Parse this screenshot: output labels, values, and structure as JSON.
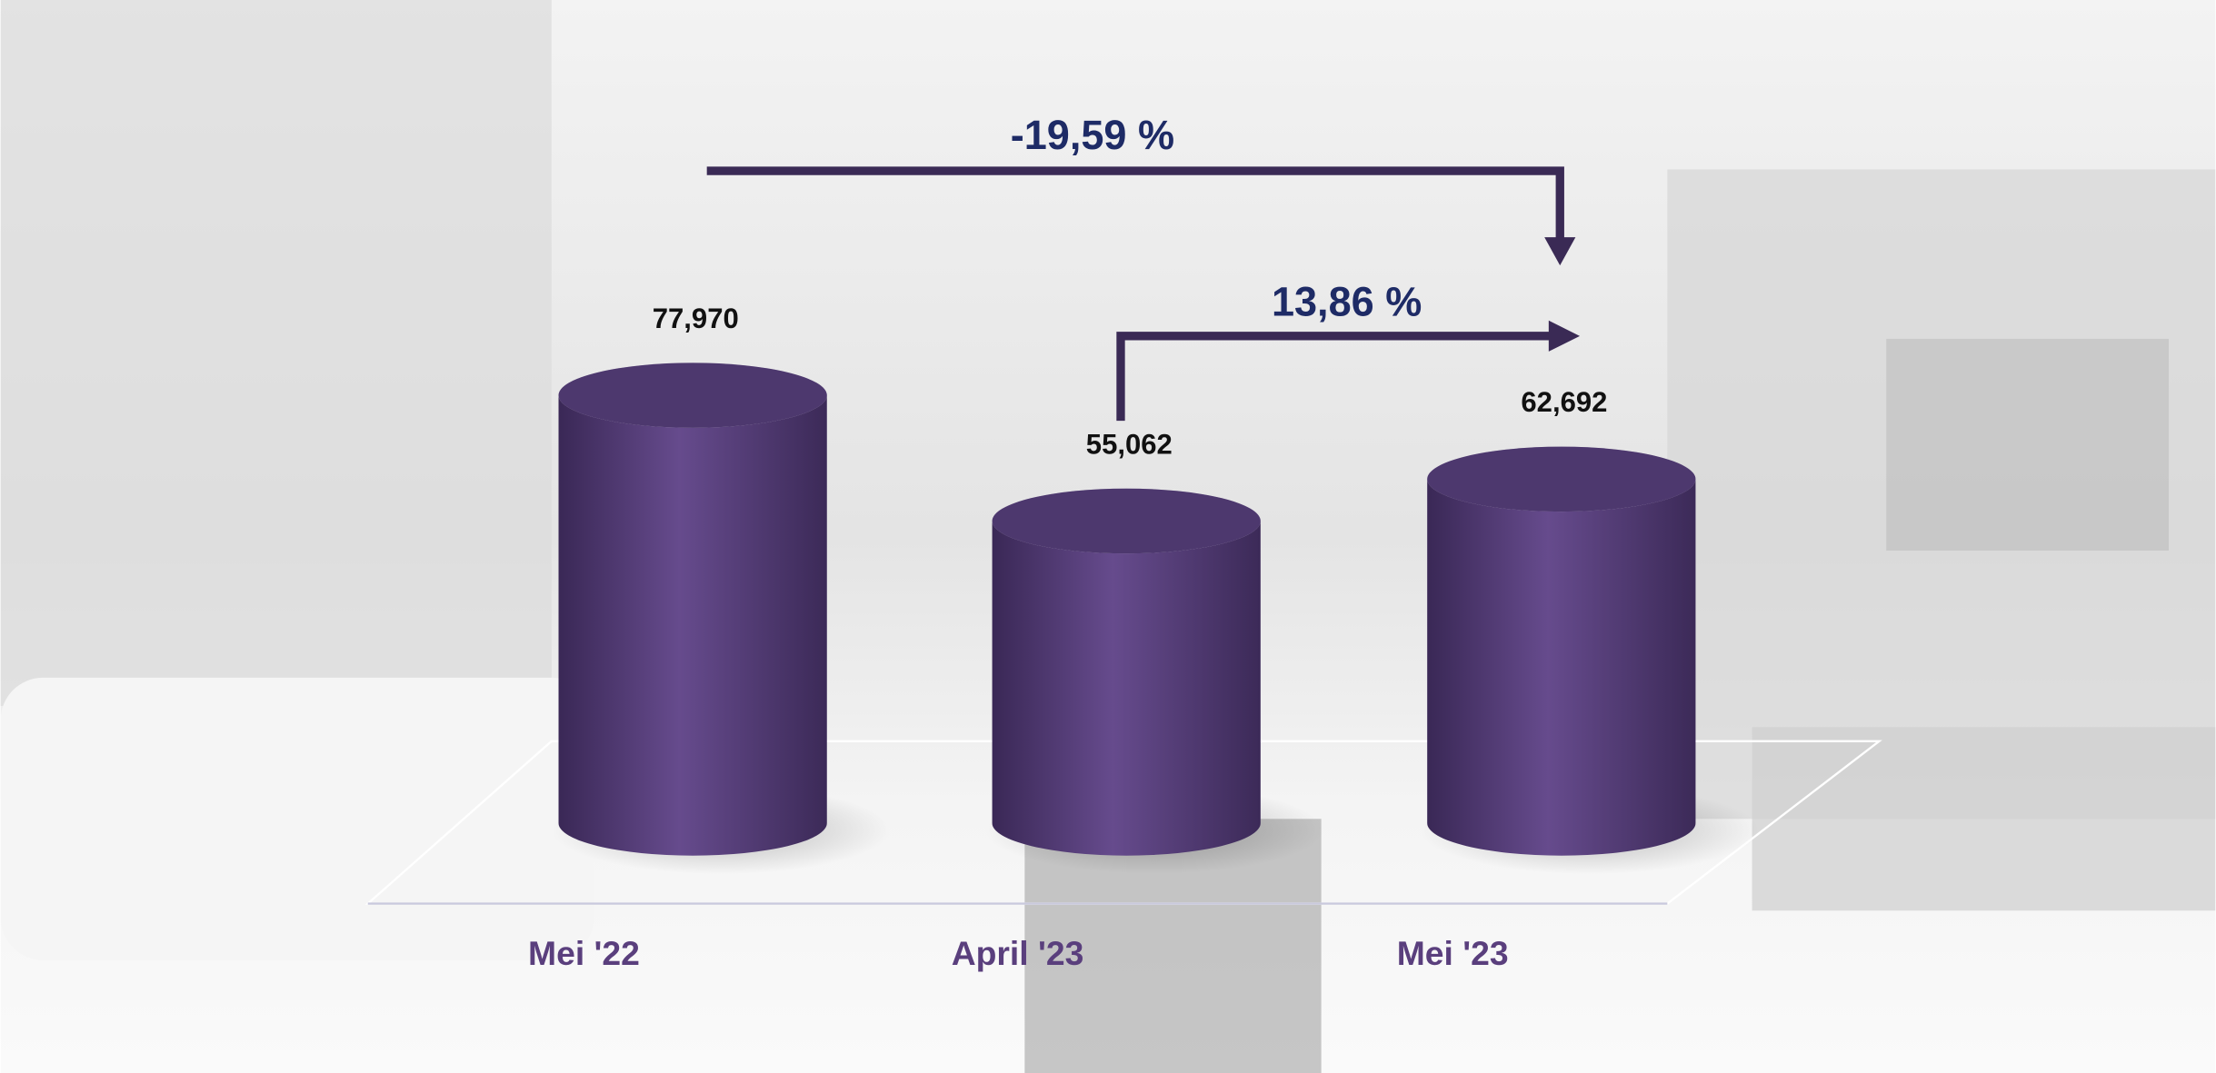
{
  "chart_data": {
    "type": "bar3d",
    "categories": [
      "Mei '22",
      "April '23",
      "Mei '23"
    ],
    "values": [
      77970,
      55062,
      62692
    ],
    "value_labels": [
      "77,970",
      "55,062",
      "62,692"
    ],
    "color": "#5e4585",
    "annotations": [
      "-19,59 %",
      "13,86 %"
    ]
  }
}
